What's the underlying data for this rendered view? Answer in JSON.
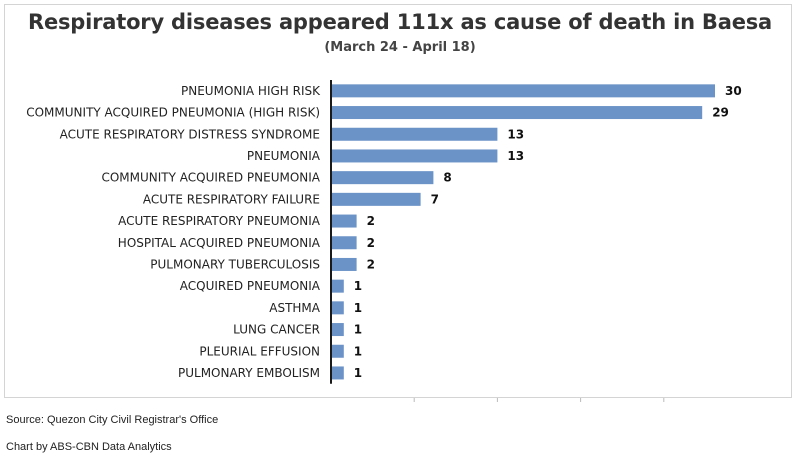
{
  "chart_data": {
    "type": "bar",
    "orientation": "horizontal",
    "title": "Respiratory diseases appeared 111x as cause of death in Baesa",
    "subtitle": "(March 24 - April 18)",
    "categories": [
      "PNEUMONIA HIGH RISK",
      "COMMUNITY ACQUIRED PNEUMONIA (HIGH RISK)",
      "ACUTE RESPIRATORY DISTRESS SYNDROME",
      "PNEUMONIA",
      "COMMUNITY ACQUIRED PNEUMONIA",
      "ACUTE RESPIRATORY FAILURE",
      "ACUTE RESPIRATORY PNEUMONIA",
      "HOSPITAL ACQUIRED PNEUMONIA",
      "PULMONARY TUBERCULOSIS",
      "ACQUIRED PNEUMONIA",
      "ASTHMA",
      "LUNG CANCER",
      "PLEURIAL EFFUSION",
      "PULMONARY EMBOLISM"
    ],
    "values": [
      30,
      29,
      13,
      13,
      8,
      7,
      2,
      2,
      2,
      1,
      1,
      1,
      1,
      1
    ],
    "xlim": [
      0,
      35
    ],
    "grid": false,
    "legend": "none",
    "bar_color": "#6b93c7"
  },
  "footer": {
    "source": "Source: Quezon City Civil Registrar's Office",
    "credit": "Chart by ABS-CBN Data Analytics"
  }
}
